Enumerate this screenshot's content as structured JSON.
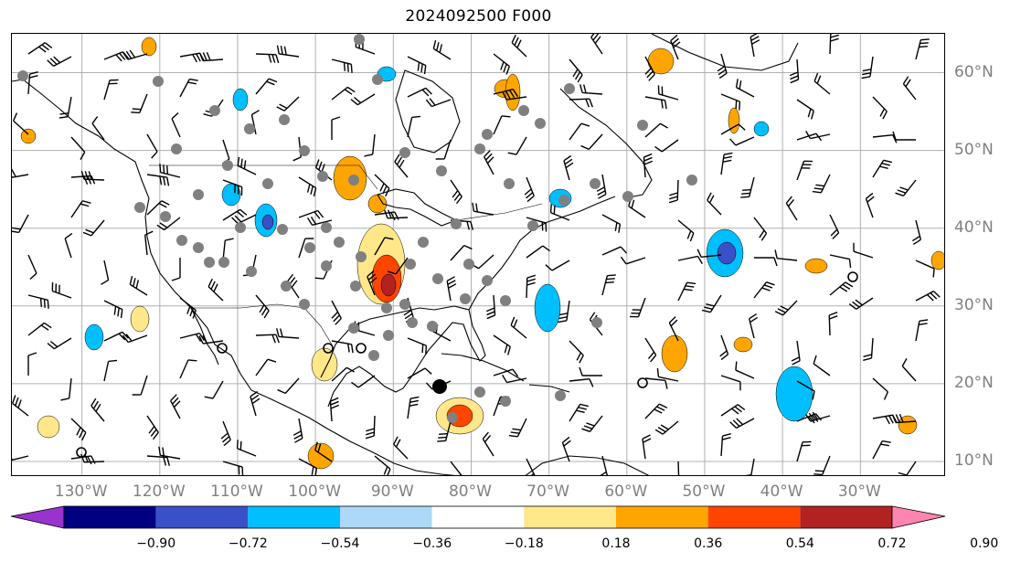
{
  "title": "2024092500 F000",
  "map": {
    "lon_range": [
      -139,
      -19
    ],
    "lat_range": [
      8,
      65
    ],
    "grid_lons": [
      -130,
      -120,
      -110,
      -100,
      -90,
      -80,
      -70,
      -60,
      -50,
      -40,
      -30
    ],
    "grid_lats": [
      10,
      20,
      30,
      40,
      50,
      60
    ],
    "lon_labels": [
      "130°W",
      "120°W",
      "110°W",
      "100°W",
      "90°W",
      "80°W",
      "70°W",
      "60°W",
      "50°W",
      "40°W",
      "30°W"
    ],
    "lat_labels": [
      "10°N",
      "20°N",
      "30°N",
      "40°N",
      "50°N",
      "60°N"
    ]
  },
  "colorbar": {
    "extend": "both",
    "bounds": [
      "−0.90",
      "−0.72",
      "−0.54",
      "−0.36",
      "−0.18",
      "0.18",
      "0.36",
      "0.54",
      "0.72",
      "0.90"
    ],
    "colors": [
      "#9a32cd",
      "#000080",
      "#3a50c8",
      "#00bfff",
      "#add8f7",
      "#ffffff",
      "#ffe78a",
      "#ffa500",
      "#ff4500",
      "#b22222",
      "#ff85b0"
    ]
  },
  "colors": {
    "grid": "#b0b0b0",
    "coast": "#000000",
    "station": "#808080",
    "barb": "#000000"
  }
}
